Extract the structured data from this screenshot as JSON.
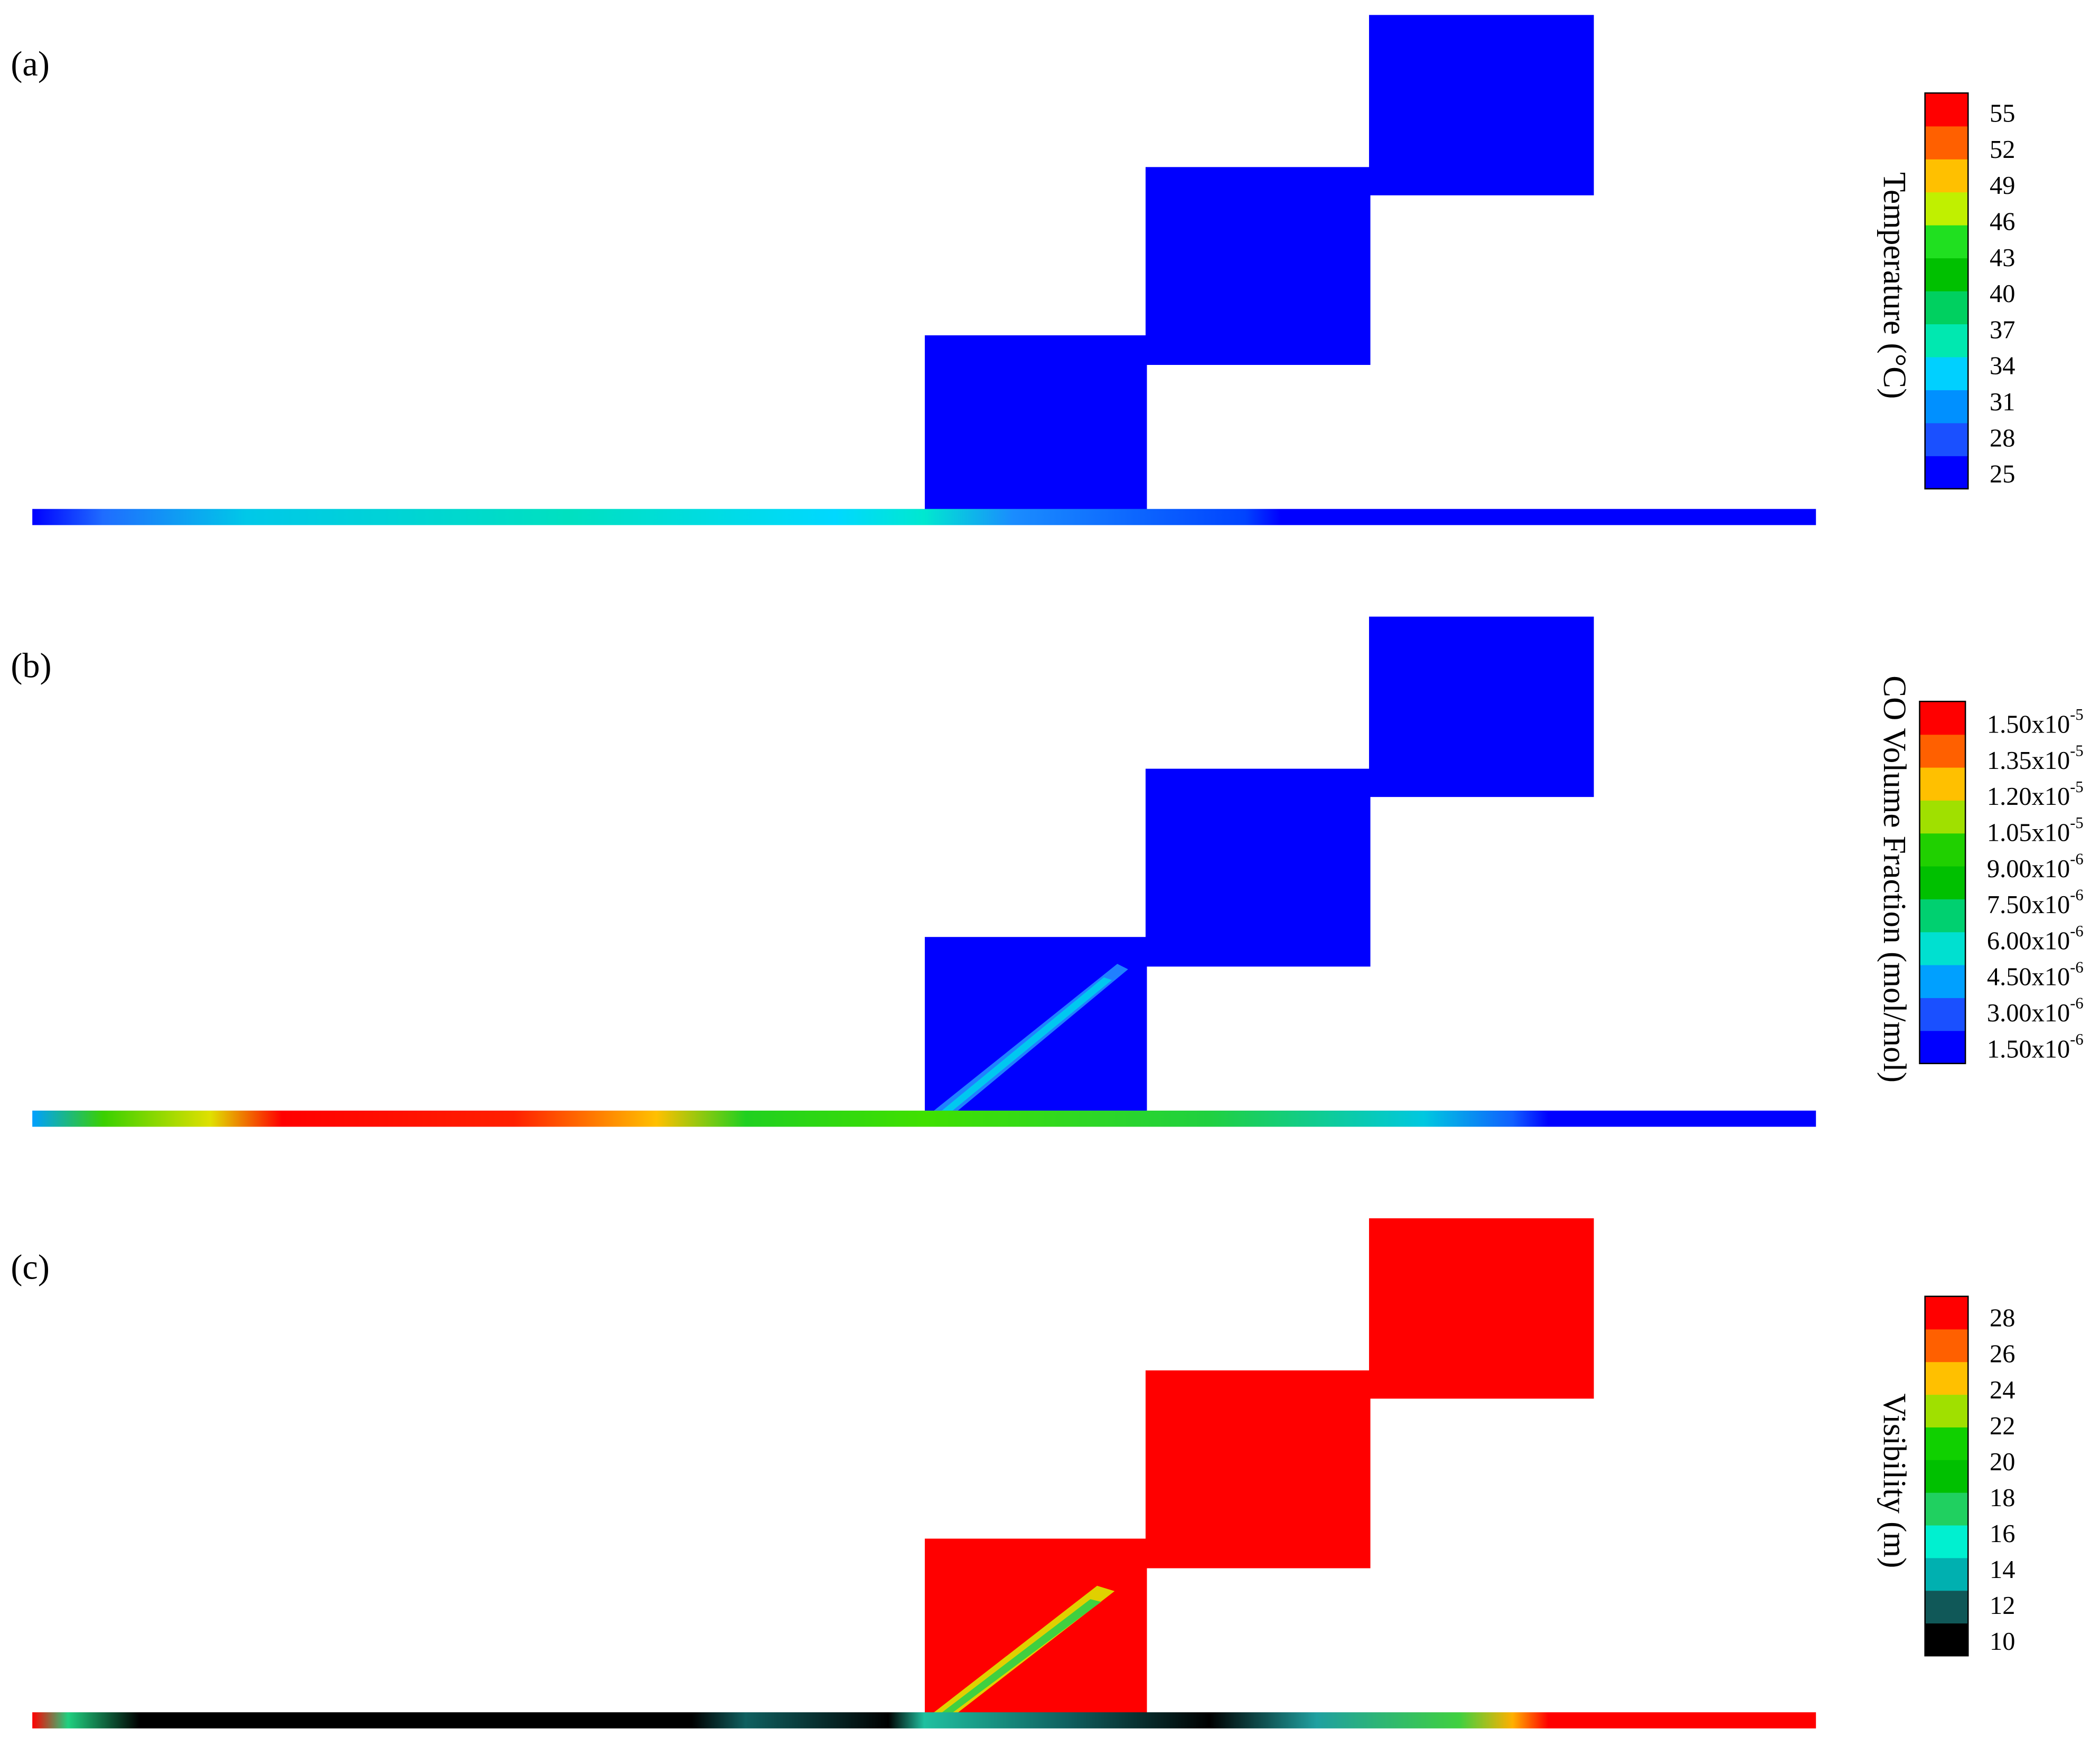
{
  "panels": [
    {
      "label": "(a)",
      "colorbar": {
        "title": "Temperature (°C)",
        "ticks": [
          "55",
          "52",
          "49",
          "46",
          "43",
          "40",
          "37",
          "34",
          "31",
          "28",
          "25"
        ]
      }
    },
    {
      "label": "(b)",
      "colorbar": {
        "title": "CO Volume Fraction (mol/mol)",
        "ticks": [
          {
            "mantissa": "1.50x10",
            "exponent": "-5"
          },
          {
            "mantissa": "1.35x10",
            "exponent": "-5"
          },
          {
            "mantissa": "1.20x10",
            "exponent": "-5"
          },
          {
            "mantissa": "1.05x10",
            "exponent": "-5"
          },
          {
            "mantissa": "9.00x10",
            "exponent": "-6"
          },
          {
            "mantissa": "7.50x10",
            "exponent": "-6"
          },
          {
            "mantissa": "6.00x10",
            "exponent": "-6"
          },
          {
            "mantissa": "4.50x10",
            "exponent": "-6"
          },
          {
            "mantissa": "3.00x10",
            "exponent": "-6"
          },
          {
            "mantissa": "1.50x10",
            "exponent": "-6"
          }
        ]
      }
    },
    {
      "label": "(c)",
      "colorbar": {
        "title": "Visibility (m)",
        "ticks": [
          "28",
          "26",
          "24",
          "22",
          "20",
          "18",
          "16",
          "14",
          "12",
          "10"
        ]
      }
    }
  ]
}
